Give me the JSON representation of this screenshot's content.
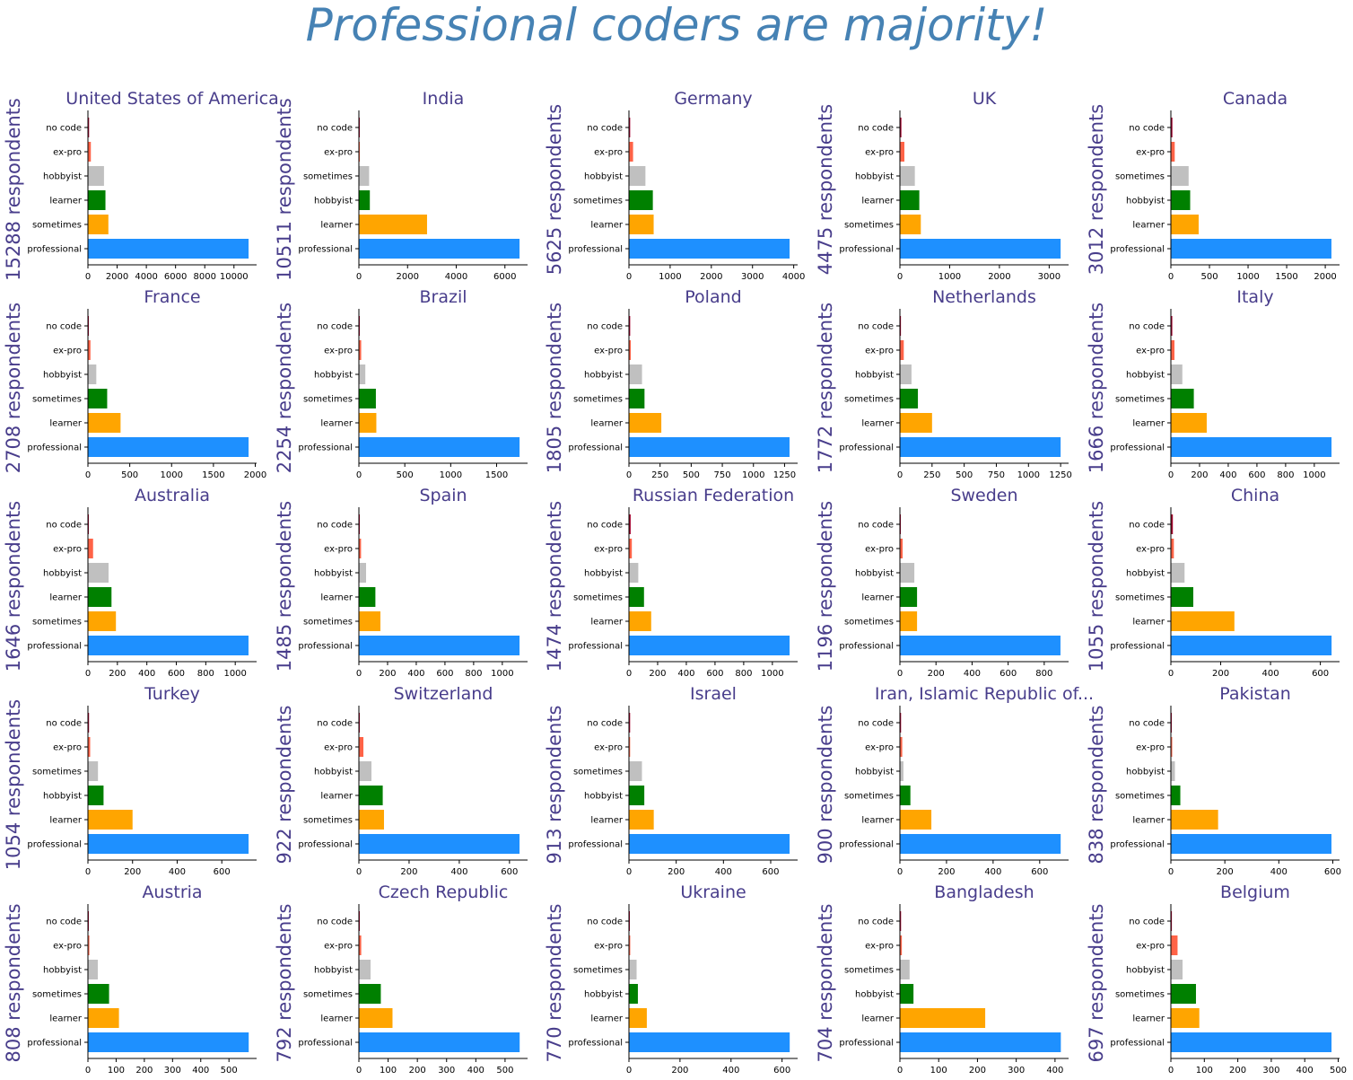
{
  "title": "Professional coders are majority!",
  "colors": {
    "title": "#4682b4",
    "subplot_text": "#483d8b",
    "no code": "#a3002d",
    "ex-pro": "#ff6347",
    "hobbyist": "#c0c0c0",
    "learner": "#ffa500",
    "sometimes": "#ff0000",
    "rank_colors": [
      "#1e90ff",
      "#ffa500",
      "#008000",
      "#c0c0c0",
      "#ff6347",
      "#a3002d"
    ]
  },
  "chart_data": [
    {
      "type": "bar",
      "orientation": "horizontal",
      "title": "United States of America",
      "ylabel": "15288 respondents",
      "categories": [
        "professional",
        "sometimes",
        "learner",
        "hobbyist",
        "ex-pro",
        "no code"
      ],
      "values": [
        11000,
        1400,
        1200,
        1100,
        200,
        80
      ],
      "xlim": [
        0,
        11550
      ],
      "xticks": [
        0,
        2000,
        4000,
        6000,
        8000,
        10000
      ]
    },
    {
      "type": "bar",
      "orientation": "horizontal",
      "title": "India",
      "ylabel": "10511 respondents",
      "categories": [
        "professional",
        "learner",
        "hobbyist",
        "sometimes",
        "ex-pro",
        "no code"
      ],
      "values": [
        6600,
        2800,
        450,
        420,
        40,
        15
      ],
      "xlim": [
        0,
        6930
      ],
      "xticks": [
        0,
        2000,
        4000,
        6000
      ]
    },
    {
      "type": "bar",
      "orientation": "horizontal",
      "title": "Germany",
      "ylabel": "5625 respondents",
      "categories": [
        "professional",
        "learner",
        "sometimes",
        "hobbyist",
        "ex-pro",
        "no code"
      ],
      "values": [
        3900,
        600,
        580,
        400,
        100,
        30
      ],
      "xlim": [
        0,
        4095
      ],
      "xticks": [
        0,
        1000,
        2000,
        3000,
        4000
      ]
    },
    {
      "type": "bar",
      "orientation": "horizontal",
      "title": "UK",
      "ylabel": "4475 respondents",
      "categories": [
        "professional",
        "sometimes",
        "learner",
        "hobbyist",
        "ex-pro",
        "no code"
      ],
      "values": [
        3230,
        420,
        390,
        300,
        90,
        30
      ],
      "xlim": [
        0,
        3390
      ],
      "xticks": [
        0,
        1000,
        2000,
        3000
      ]
    },
    {
      "type": "bar",
      "orientation": "horizontal",
      "title": "Canada",
      "ylabel": "3012 respondents",
      "categories": [
        "professional",
        "learner",
        "hobbyist",
        "sometimes",
        "ex-pro",
        "no code"
      ],
      "values": [
        2080,
        360,
        250,
        230,
        50,
        20
      ],
      "xlim": [
        0,
        2185
      ],
      "xticks": [
        0,
        500,
        1000,
        1500,
        2000
      ]
    },
    {
      "type": "bar",
      "orientation": "horizontal",
      "title": "France",
      "ylabel": "2708 respondents",
      "categories": [
        "professional",
        "learner",
        "sometimes",
        "hobbyist",
        "ex-pro",
        "no code"
      ],
      "values": [
        1920,
        390,
        230,
        100,
        30,
        10
      ],
      "xlim": [
        0,
        2016
      ],
      "xticks": [
        0,
        500,
        1000,
        1500,
        2000
      ]
    },
    {
      "type": "bar",
      "orientation": "horizontal",
      "title": "Brazil",
      "ylabel": "2254 respondents",
      "categories": [
        "professional",
        "learner",
        "sometimes",
        "hobbyist",
        "ex-pro",
        "no code"
      ],
      "values": [
        1750,
        190,
        185,
        70,
        25,
        8
      ],
      "xlim": [
        0,
        1837
      ],
      "xticks": [
        0,
        500,
        1000,
        1500
      ]
    },
    {
      "type": "bar",
      "orientation": "horizontal",
      "title": "Poland",
      "ylabel": "1805 respondents",
      "categories": [
        "professional",
        "learner",
        "sometimes",
        "hobbyist",
        "ex-pro",
        "no code"
      ],
      "values": [
        1290,
        260,
        125,
        105,
        15,
        10
      ],
      "xlim": [
        0,
        1355
      ],
      "xticks": [
        0,
        250,
        500,
        750,
        1000,
        1250
      ]
    },
    {
      "type": "bar",
      "orientation": "horizontal",
      "title": "Netherlands",
      "ylabel": "1772 respondents",
      "categories": [
        "professional",
        "learner",
        "sometimes",
        "hobbyist",
        "ex-pro",
        "no code"
      ],
      "values": [
        1250,
        250,
        140,
        90,
        30,
        8
      ],
      "xlim": [
        0,
        1312
      ],
      "xticks": [
        0,
        250,
        500,
        750,
        1000,
        1250
      ]
    },
    {
      "type": "bar",
      "orientation": "horizontal",
      "title": "Italy",
      "ylabel": "1666 respondents",
      "categories": [
        "professional",
        "learner",
        "sometimes",
        "hobbyist",
        "ex-pro",
        "no code"
      ],
      "values": [
        1120,
        250,
        160,
        80,
        25,
        10
      ],
      "xlim": [
        0,
        1176
      ],
      "xticks": [
        0,
        200,
        400,
        600,
        800,
        1000
      ]
    },
    {
      "type": "bar",
      "orientation": "horizontal",
      "title": "Australia",
      "ylabel": "1646 respondents",
      "categories": [
        "professional",
        "sometimes",
        "learner",
        "hobbyist",
        "ex-pro",
        "no code"
      ],
      "values": [
        1090,
        190,
        160,
        140,
        35,
        5
      ],
      "xlim": [
        0,
        1145
      ],
      "xticks": [
        0,
        200,
        400,
        600,
        800,
        1000
      ]
    },
    {
      "type": "bar",
      "orientation": "horizontal",
      "title": "Spain",
      "ylabel": "1485 respondents",
      "categories": [
        "professional",
        "sometimes",
        "learner",
        "hobbyist",
        "ex-pro",
        "no code"
      ],
      "values": [
        1120,
        150,
        115,
        50,
        15,
        5
      ],
      "xlim": [
        0,
        1176
      ],
      "xticks": [
        0,
        200,
        400,
        600,
        800,
        1000
      ]
    },
    {
      "type": "bar",
      "orientation": "horizontal",
      "title": "Russian Federation",
      "ylabel": "1474 respondents",
      "categories": [
        "professional",
        "learner",
        "sometimes",
        "hobbyist",
        "ex-pro",
        "no code"
      ],
      "values": [
        1120,
        155,
        105,
        65,
        20,
        12
      ],
      "xlim": [
        0,
        1176
      ],
      "xticks": [
        0,
        200,
        400,
        600,
        800,
        1000
      ]
    },
    {
      "type": "bar",
      "orientation": "horizontal",
      "title": "Sweden",
      "ylabel": "1196 respondents",
      "categories": [
        "professional",
        "sometimes",
        "learner",
        "hobbyist",
        "ex-pro",
        "no code"
      ],
      "values": [
        890,
        95,
        95,
        80,
        15,
        3
      ],
      "xlim": [
        0,
        935
      ],
      "xticks": [
        0,
        200,
        400,
        600,
        800
      ]
    },
    {
      "type": "bar",
      "orientation": "horizontal",
      "title": "China",
      "ylabel": "1055 respondents",
      "categories": [
        "professional",
        "learner",
        "sometimes",
        "hobbyist",
        "ex-pro",
        "no code"
      ],
      "values": [
        645,
        255,
        90,
        55,
        12,
        8
      ],
      "xlim": [
        0,
        677
      ],
      "xticks": [
        0,
        200,
        400,
        600
      ]
    },
    {
      "type": "bar",
      "orientation": "horizontal",
      "title": "Turkey",
      "ylabel": "1054 respondents",
      "categories": [
        "professional",
        "learner",
        "hobbyist",
        "sometimes",
        "ex-pro",
        "no code"
      ],
      "values": [
        720,
        200,
        70,
        45,
        10,
        5
      ],
      "xlim": [
        0,
        756
      ],
      "xticks": [
        0,
        200,
        400,
        600
      ]
    },
    {
      "type": "bar",
      "orientation": "horizontal",
      "title": "Switzerland",
      "ylabel": "922 respondents",
      "categories": [
        "professional",
        "sometimes",
        "learner",
        "hobbyist",
        "ex-pro",
        "no code"
      ],
      "values": [
        640,
        100,
        95,
        50,
        18,
        3
      ],
      "xlim": [
        0,
        672
      ],
      "xticks": [
        0,
        200,
        400,
        600
      ]
    },
    {
      "type": "bar",
      "orientation": "horizontal",
      "title": "Israel",
      "ylabel": "913 respondents",
      "categories": [
        "professional",
        "learner",
        "hobbyist",
        "sometimes",
        "ex-pro",
        "no code"
      ],
      "values": [
        680,
        105,
        65,
        55,
        5,
        5
      ],
      "xlim": [
        0,
        714
      ],
      "xticks": [
        0,
        200,
        400,
        600
      ]
    },
    {
      "type": "bar",
      "orientation": "horizontal",
      "title": "Iran, Islamic Republic of...",
      "ylabel": "900 respondents",
      "categories": [
        "professional",
        "learner",
        "sometimes",
        "hobbyist",
        "ex-pro",
        "no code"
      ],
      "values": [
        690,
        135,
        45,
        15,
        10,
        5
      ],
      "xlim": [
        0,
        724
      ],
      "xticks": [
        0,
        200,
        400,
        600
      ]
    },
    {
      "type": "bar",
      "orientation": "horizontal",
      "title": "Pakistan",
      "ylabel": "838 respondents",
      "categories": [
        "professional",
        "learner",
        "sometimes",
        "hobbyist",
        "ex-pro",
        "no code"
      ],
      "values": [
        595,
        175,
        35,
        15,
        5,
        2
      ],
      "xlim": [
        0,
        625
      ],
      "xticks": [
        0,
        200,
        400,
        600
      ]
    },
    {
      "type": "bar",
      "orientation": "horizontal",
      "title": "Austria",
      "ylabel": "808 respondents",
      "categories": [
        "professional",
        "learner",
        "sometimes",
        "hobbyist",
        "ex-pro",
        "no code"
      ],
      "values": [
        570,
        110,
        75,
        35,
        5,
        3
      ],
      "xlim": [
        0,
        598
      ],
      "xticks": [
        0,
        100,
        200,
        300,
        400,
        500
      ]
    },
    {
      "type": "bar",
      "orientation": "horizontal",
      "title": "Czech Republic",
      "ylabel": "792 respondents",
      "categories": [
        "professional",
        "learner",
        "sometimes",
        "hobbyist",
        "ex-pro",
        "no code"
      ],
      "values": [
        550,
        115,
        75,
        40,
        8,
        2
      ],
      "xlim": [
        0,
        577
      ],
      "xticks": [
        0,
        100,
        200,
        300,
        400,
        500
      ]
    },
    {
      "type": "bar",
      "orientation": "horizontal",
      "title": "Ukraine",
      "ylabel": "770 respondents",
      "categories": [
        "professional",
        "learner",
        "hobbyist",
        "sometimes",
        "ex-pro",
        "no code"
      ],
      "values": [
        630,
        70,
        35,
        30,
        5,
        3
      ],
      "xlim": [
        0,
        661
      ],
      "xticks": [
        0,
        200,
        400,
        600
      ]
    },
    {
      "type": "bar",
      "orientation": "horizontal",
      "title": "Bangladesh",
      "ylabel": "704 respondents",
      "categories": [
        "professional",
        "learner",
        "hobbyist",
        "sometimes",
        "ex-pro",
        "no code"
      ],
      "values": [
        415,
        220,
        35,
        25,
        5,
        3
      ],
      "xlim": [
        0,
        435
      ],
      "xticks": [
        0,
        100,
        200,
        300,
        400
      ]
    },
    {
      "type": "bar",
      "orientation": "horizontal",
      "title": "Belgium",
      "ylabel": "697 respondents",
      "categories": [
        "professional",
        "learner",
        "sometimes",
        "hobbyist",
        "ex-pro",
        "no code"
      ],
      "values": [
        480,
        85,
        75,
        35,
        20,
        3
      ],
      "xlim": [
        0,
        504
      ],
      "xticks": [
        0,
        100,
        200,
        300,
        400,
        500
      ]
    }
  ]
}
